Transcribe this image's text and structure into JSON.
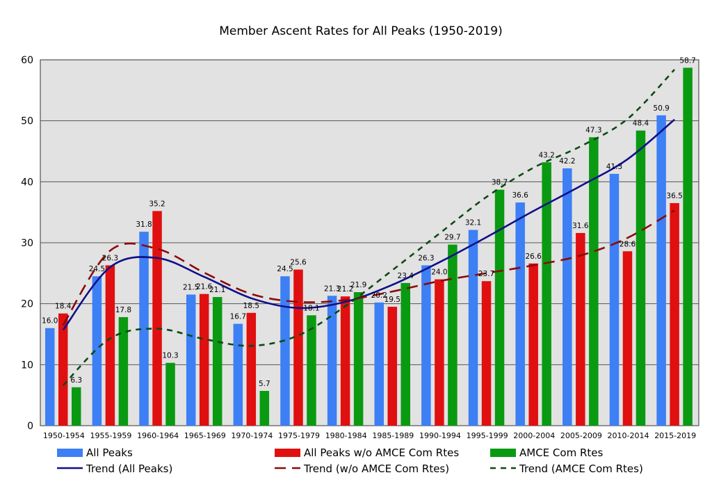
{
  "chart_data": {
    "type": "bar",
    "title": "Member Ascent Rates for All Peaks (1950-2019)",
    "xlabel": "",
    "ylabel": "",
    "ylim": [
      0,
      60
    ],
    "yticks": [
      0,
      10,
      20,
      30,
      40,
      50,
      60
    ],
    "grid": true,
    "legend_position": "bottom",
    "categories": [
      "1950-1954",
      "1955-1959",
      "1960-1964",
      "1965-1969",
      "1970-1974",
      "1975-1979",
      "1980-1984",
      "1985-1989",
      "1990-1994",
      "1995-1999",
      "2000-2004",
      "2005-2009",
      "2010-2014",
      "2015-2019"
    ],
    "series": [
      {
        "name": "All Peaks",
        "color": "#3d7ff5",
        "values": [
          16.0,
          24.5,
          31.8,
          21.5,
          16.7,
          24.5,
          21.3,
          20.2,
          26.3,
          32.1,
          36.6,
          42.2,
          41.3,
          50.9
        ],
        "labels": [
          "16.0",
          "24.5",
          "31.8",
          "21.5",
          "16.7",
          "24.5",
          "21.3",
          "20.2",
          "26.3",
          "32.1",
          "36.6",
          "42.2",
          "41.3",
          "50.9"
        ]
      },
      {
        "name": "All Peaks w/o AMCE Com Rtes",
        "color": "#e01010",
        "values": [
          18.4,
          26.3,
          35.2,
          21.6,
          18.5,
          25.6,
          21.2,
          19.5,
          24.0,
          23.7,
          26.6,
          31.6,
          28.6,
          36.5
        ],
        "labels": [
          "18.4",
          "26.3",
          "35.2",
          "21.6",
          "18.5",
          "25.6",
          "21.2",
          "19.5",
          "24.0",
          "23.7",
          "26.6",
          "31.6",
          "28.6",
          "36.5"
        ]
      },
      {
        "name": "AMCE Com Rtes",
        "color": "#0a9a12",
        "values": [
          6.3,
          17.8,
          10.3,
          21.1,
          5.7,
          18.1,
          21.9,
          23.4,
          29.7,
          38.7,
          43.2,
          47.3,
          48.4,
          58.7
        ],
        "labels": [
          "6.3",
          "17.8",
          "10.3",
          "21.1",
          "5.7",
          "18.1",
          "21.9",
          "23.4",
          "29.7",
          "38.7",
          "43.2",
          "47.3",
          "48.4",
          "58.7"
        ]
      }
    ],
    "trendlines": [
      {
        "name": "Trend (All Peaks)",
        "color": "#0f0f8a",
        "style": "solid",
        "values": [
          15.7,
          26.0,
          27.5,
          24.4,
          20.9,
          19.3,
          20.3,
          23.1,
          26.8,
          30.9,
          35.2,
          39.3,
          43.7,
          50.2
        ]
      },
      {
        "name": "Trend (w/o AMCE Com Rtes)",
        "color": "#8b0a0a",
        "style": "longdash",
        "values": [
          16.5,
          28.7,
          29.0,
          25.1,
          21.6,
          20.3,
          20.6,
          22.0,
          23.7,
          25.0,
          26.3,
          27.9,
          30.8,
          35.3
        ]
      },
      {
        "name": "Trend (AMCE Com Rtes)",
        "color": "#0b4a14",
        "style": "dash",
        "values": [
          6.6,
          14.3,
          15.9,
          14.2,
          13.1,
          14.8,
          19.6,
          25.5,
          31.5,
          37.5,
          42.3,
          45.8,
          50.3,
          58.4
        ]
      }
    ]
  }
}
